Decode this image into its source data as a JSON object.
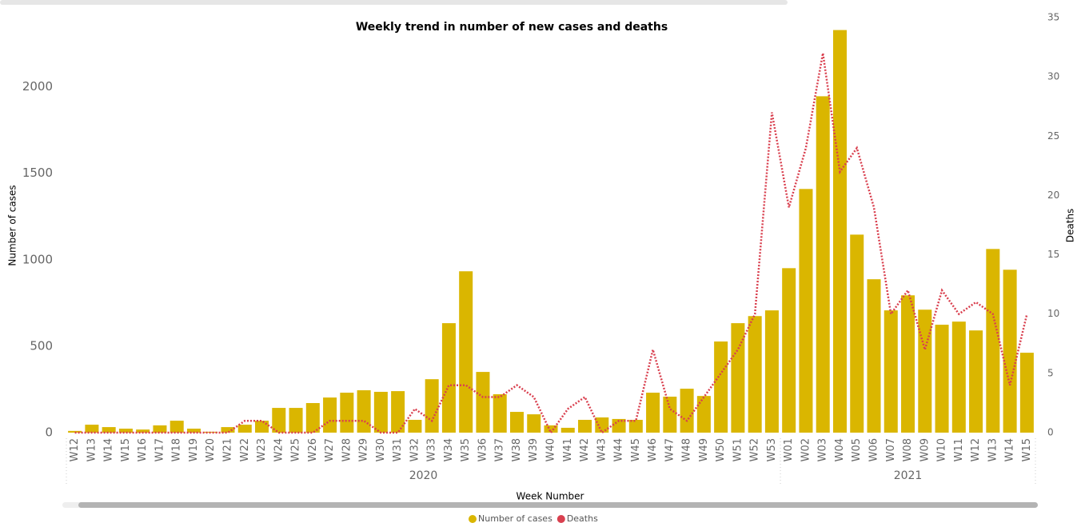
{
  "chart_data": {
    "type": "bar_line",
    "title": "Weekly trend in number of new cases and deaths",
    "x_label": "Week Number",
    "y_label": "Number of cases",
    "y2_label": "Deaths",
    "groups": [
      {
        "name": "2020",
        "categories": [
          "W12",
          "W13",
          "W14",
          "W15",
          "W16",
          "W17",
          "W18",
          "W19",
          "W20",
          "W21",
          "W22",
          "W23",
          "W24",
          "W25",
          "W26",
          "W27",
          "W28",
          "W29",
          "W30",
          "W31",
          "W32",
          "W33",
          "W34",
          "W35",
          "W36",
          "W37",
          "W38",
          "W39",
          "W40",
          "W41",
          "W42",
          "W43",
          "W44",
          "W45",
          "W46",
          "W47",
          "W48",
          "W49",
          "W50",
          "W51",
          "W52",
          "W53"
        ]
      },
      {
        "name": "2021",
        "categories": [
          "W01",
          "W02",
          "W03",
          "W04",
          "W05",
          "W06",
          "W07",
          "W08",
          "W09",
          "W10",
          "W11",
          "W12",
          "W13",
          "W14",
          "W15"
        ]
      }
    ],
    "series": [
      {
        "name": "Number of cases",
        "type": "bar",
        "color": "#dab600",
        "values": [
          10,
          46,
          32,
          23,
          18,
          42,
          69,
          23,
          5,
          32,
          46,
          69,
          143,
          143,
          171,
          203,
          231,
          245,
          236,
          240,
          74,
          309,
          633,
          933,
          351,
          222,
          120,
          106,
          42,
          28,
          74,
          88,
          79,
          74,
          231,
          208,
          254,
          212,
          527,
          633,
          674,
          707,
          951,
          1409,
          1945,
          2328,
          1145,
          887,
          707,
          794,
          711,
          624,
          642,
          591,
          1062,
          942,
          462
        ]
      },
      {
        "name": "Deaths",
        "type": "line",
        "axis": "y2",
        "color": "#d9404f",
        "values": [
          0,
          0,
          0,
          0,
          0,
          0,
          0,
          0,
          0,
          0,
          1,
          1,
          0,
          0,
          0,
          1,
          1,
          1,
          0,
          0,
          2,
          1,
          4,
          4,
          3,
          3,
          4,
          3,
          0,
          2,
          3,
          0,
          1,
          1,
          7,
          2,
          1,
          3,
          5,
          7,
          10,
          27,
          19,
          24,
          32,
          22,
          24,
          19,
          10,
          12,
          7,
          12,
          10,
          11,
          10,
          4,
          10
        ]
      }
    ],
    "ylim": [
      0,
      2400
    ],
    "yticks": [
      0,
      500,
      1000,
      1500,
      2000
    ],
    "y2lim": [
      0,
      35
    ],
    "y2ticks": [
      0,
      5,
      10,
      15,
      20,
      25,
      30,
      35
    ]
  }
}
